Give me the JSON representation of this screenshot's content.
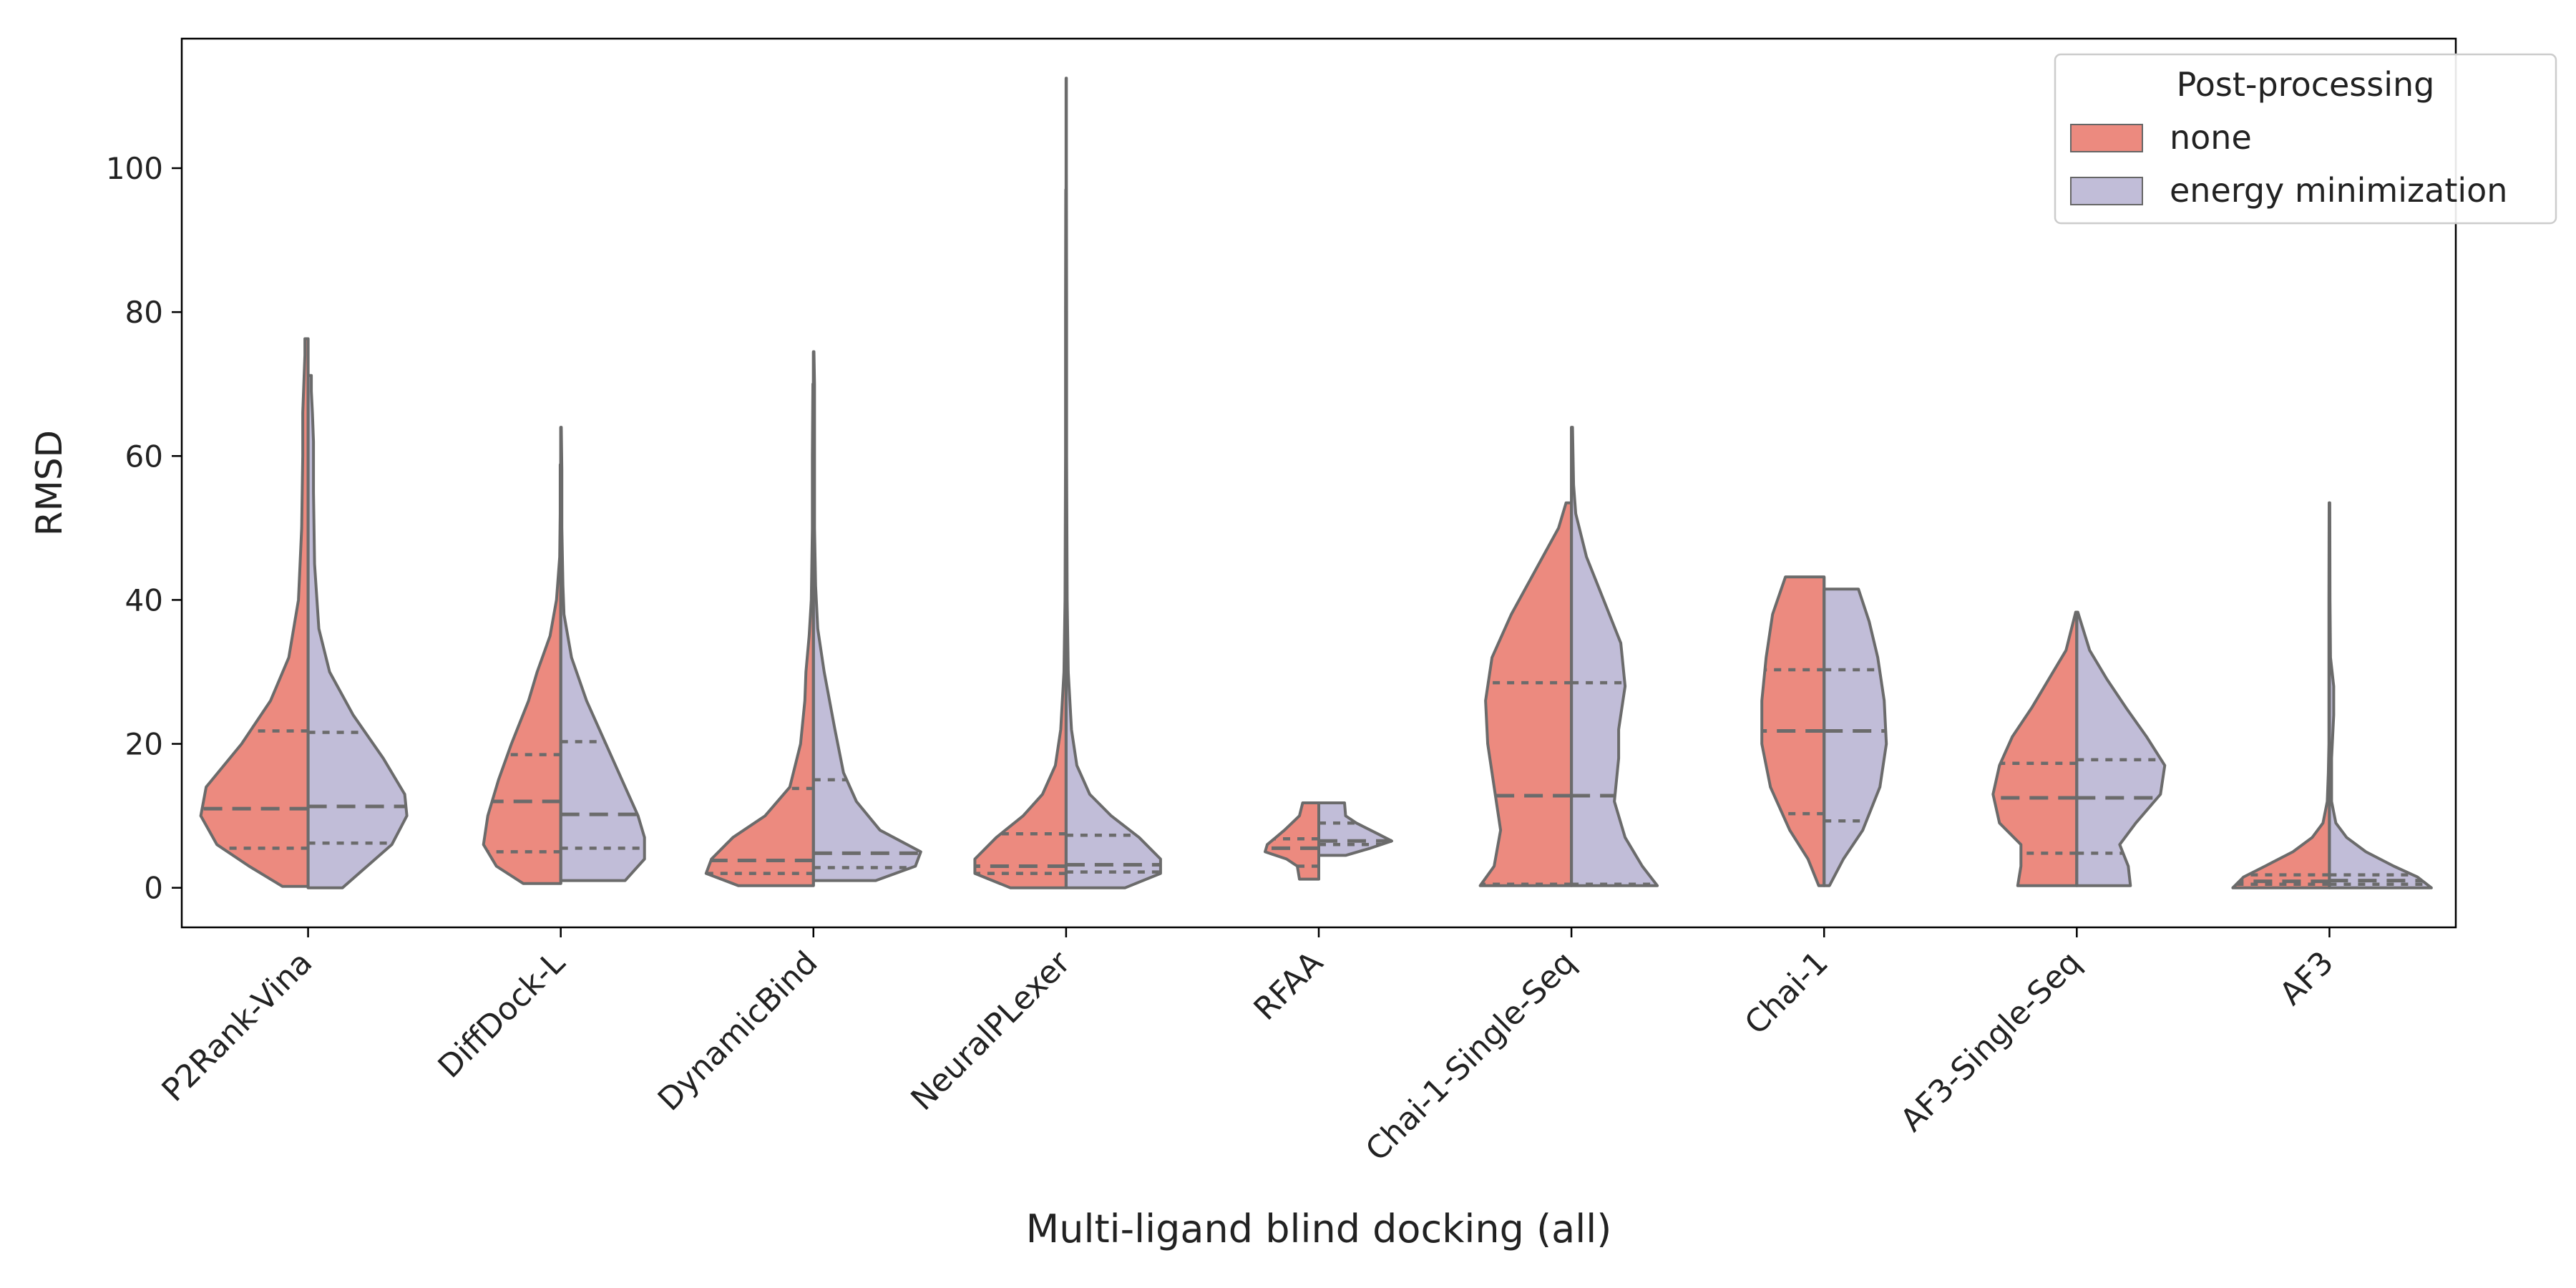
{
  "chart_data": {
    "type": "violin",
    "title": "",
    "xlabel": "Multi-ligand blind docking (all)",
    "ylabel": "RMSD",
    "ylim": [
      -5.5,
      118
    ],
    "yticks": [
      0,
      20,
      40,
      60,
      80,
      100
    ],
    "grid": false,
    "legend": {
      "title": "Post-processing",
      "position": "top-right"
    },
    "series": [
      {
        "name": "none",
        "color": "#ec8a7f"
      },
      {
        "name": "energy minimization",
        "color": "#c1bdd8"
      }
    ],
    "categories": [
      "P2Rank-Vina",
      "DiffDock-L",
      "DynamicBind",
      "NeuralPLexer",
      "RFAA",
      "Chai-1-Single-Seq",
      "Chai-1",
      "AF3-Single-Seq",
      "AF3"
    ],
    "groups": [
      {
        "name": "P2Rank-Vina",
        "none": {
          "quartiles": [
            5.5,
            11.0,
            21.8
          ],
          "min": 0.2,
          "max": 76.3,
          "density": [
            [
              0.2,
              0.24
            ],
            [
              3,
              0.55
            ],
            [
              6,
              0.85
            ],
            [
              10,
              1.0
            ],
            [
              14,
              0.95
            ],
            [
              20,
              0.62
            ],
            [
              26,
              0.35
            ],
            [
              32,
              0.18
            ],
            [
              40,
              0.09
            ],
            [
              50,
              0.06
            ],
            [
              60,
              0.05
            ],
            [
              66,
              0.05
            ],
            [
              70,
              0.04
            ],
            [
              74,
              0.03
            ],
            [
              76.3,
              0.03
            ]
          ]
        },
        "energy minimization": {
          "quartiles": [
            6.2,
            11.3,
            21.6
          ],
          "min": 0.0,
          "max": 71.2,
          "density": [
            [
              0,
              0.32
            ],
            [
              3,
              0.55
            ],
            [
              6,
              0.78
            ],
            [
              10,
              0.92
            ],
            [
              13,
              0.9
            ],
            [
              18,
              0.7
            ],
            [
              24,
              0.42
            ],
            [
              30,
              0.2
            ],
            [
              36,
              0.1
            ],
            [
              45,
              0.06
            ],
            [
              55,
              0.05
            ],
            [
              62,
              0.05
            ],
            [
              66,
              0.04
            ],
            [
              69,
              0.03
            ],
            [
              71.2,
              0.03
            ]
          ]
        }
      },
      {
        "name": "DiffDock-L",
        "none": {
          "quartiles": [
            5.0,
            12.0,
            18.5
          ],
          "min": 0.6,
          "max": 58.8,
          "density": [
            [
              0.6,
              0.35
            ],
            [
              3,
              0.6
            ],
            [
              6,
              0.72
            ],
            [
              10,
              0.68
            ],
            [
              15,
              0.58
            ],
            [
              20,
              0.46
            ],
            [
              26,
              0.3
            ],
            [
              30,
              0.22
            ],
            [
              35,
              0.1
            ],
            [
              40,
              0.04
            ],
            [
              46,
              0.01
            ],
            [
              52,
              0.005
            ],
            [
              58.8,
              0.005
            ]
          ]
        },
        "energy minimization": {
          "quartiles": [
            5.5,
            10.2,
            20.3
          ],
          "min": 1.0,
          "max": 64.0,
          "density": [
            [
              1,
              0.6
            ],
            [
              4,
              0.78
            ],
            [
              7,
              0.78
            ],
            [
              10,
              0.72
            ],
            [
              14,
              0.6
            ],
            [
              20,
              0.42
            ],
            [
              26,
              0.24
            ],
            [
              32,
              0.1
            ],
            [
              38,
              0.03
            ],
            [
              42,
              0.02
            ],
            [
              50,
              0.01
            ],
            [
              58,
              0.01
            ],
            [
              64,
              0.005
            ]
          ]
        }
      },
      {
        "name": "DynamicBind",
        "none": {
          "quartiles": [
            2.0,
            3.8,
            13.8
          ],
          "min": 0.3,
          "max": 70.0,
          "density": [
            [
              0.3,
              0.7
            ],
            [
              2,
              1.0
            ],
            [
              4,
              0.95
            ],
            [
              7,
              0.75
            ],
            [
              10,
              0.45
            ],
            [
              14,
              0.22
            ],
            [
              20,
              0.12
            ],
            [
              26,
              0.08
            ],
            [
              30,
              0.07
            ],
            [
              35,
              0.04
            ],
            [
              40,
              0.02
            ],
            [
              50,
              0.01
            ],
            [
              60,
              0.01
            ],
            [
              70,
              0.005
            ]
          ]
        },
        "energy minimization": {
          "quartiles": [
            2.8,
            4.8,
            15.0
          ],
          "min": 1.0,
          "max": 74.5,
          "density": [
            [
              1,
              0.58
            ],
            [
              3,
              0.95
            ],
            [
              5,
              1.0
            ],
            [
              8,
              0.62
            ],
            [
              12,
              0.4
            ],
            [
              16,
              0.28
            ],
            [
              22,
              0.2
            ],
            [
              30,
              0.1
            ],
            [
              36,
              0.04
            ],
            [
              42,
              0.02
            ],
            [
              50,
              0.01
            ],
            [
              60,
              0.01
            ],
            [
              70,
              0.01
            ],
            [
              74.5,
              0.005
            ]
          ]
        }
      },
      {
        "name": "NeuralPLexer",
        "none": {
          "quartiles": [
            2.0,
            3.0,
            7.5
          ],
          "min": 0.0,
          "max": 97.0,
          "density": [
            [
              0,
              0.52
            ],
            [
              2,
              0.85
            ],
            [
              4,
              0.85
            ],
            [
              7,
              0.65
            ],
            [
              10,
              0.4
            ],
            [
              13,
              0.22
            ],
            [
              17,
              0.1
            ],
            [
              22,
              0.05
            ],
            [
              30,
              0.02
            ],
            [
              40,
              0.01
            ],
            [
              60,
              0.005
            ],
            [
              80,
              0.005
            ],
            [
              97,
              0.003
            ]
          ]
        },
        "energy minimization": {
          "quartiles": [
            2.2,
            3.2,
            7.3
          ],
          "min": 0.0,
          "max": 112.5,
          "density": [
            [
              0,
              0.55
            ],
            [
              2,
              0.88
            ],
            [
              4,
              0.88
            ],
            [
              7,
              0.68
            ],
            [
              10,
              0.42
            ],
            [
              13,
              0.22
            ],
            [
              17,
              0.1
            ],
            [
              22,
              0.05
            ],
            [
              30,
              0.02
            ],
            [
              40,
              0.01
            ],
            [
              60,
              0.005
            ],
            [
              80,
              0.005
            ],
            [
              100,
              0.003
            ],
            [
              112.5,
              0.003
            ]
          ]
        }
      },
      {
        "name": "RFAA",
        "none": {
          "quartiles": [
            3.0,
            5.5,
            6.8
          ],
          "min": 1.2,
          "max": 11.8,
          "density": [
            [
              1.2,
              0.18
            ],
            [
              3,
              0.2
            ],
            [
              4,
              0.3
            ],
            [
              5,
              0.5
            ],
            [
              6,
              0.48
            ],
            [
              7,
              0.4
            ],
            [
              8,
              0.32
            ],
            [
              9,
              0.25
            ],
            [
              10,
              0.18
            ],
            [
              11.8,
              0.15
            ]
          ]
        },
        "energy minimization": {
          "quartiles": [
            6.0,
            6.5,
            9.0
          ],
          "min": 4.5,
          "max": 11.8,
          "density": [
            [
              4.5,
              0.25
            ],
            [
              5.5,
              0.48
            ],
            [
              6.5,
              0.68
            ],
            [
              7.5,
              0.55
            ],
            [
              9,
              0.35
            ],
            [
              10,
              0.25
            ],
            [
              11.8,
              0.24
            ]
          ]
        }
      },
      {
        "name": "Chai-1-Single-Seq",
        "none": {
          "quartiles": [
            0.5,
            12.8,
            28.5
          ],
          "min": 0.3,
          "max": 53.5,
          "density": [
            [
              0.3,
              0.85
            ],
            [
              3,
              0.72
            ],
            [
              8,
              0.66
            ],
            [
              14,
              0.72
            ],
            [
              20,
              0.78
            ],
            [
              26,
              0.8
            ],
            [
              32,
              0.74
            ],
            [
              38,
              0.56
            ],
            [
              44,
              0.34
            ],
            [
              50,
              0.12
            ],
            [
              53.5,
              0.05
            ]
          ]
        },
        "energy minimization": {
          "quartiles": [
            0.5,
            12.8,
            28.5
          ],
          "min": 0.3,
          "max": 64.0,
          "density": [
            [
              0.3,
              0.8
            ],
            [
              3,
              0.66
            ],
            [
              7,
              0.5
            ],
            [
              12,
              0.4
            ],
            [
              18,
              0.44
            ],
            [
              22,
              0.44
            ],
            [
              28,
              0.5
            ],
            [
              34,
              0.46
            ],
            [
              40,
              0.3
            ],
            [
              46,
              0.14
            ],
            [
              52,
              0.04
            ],
            [
              56,
              0.02
            ],
            [
              64,
              0.01
            ]
          ]
        }
      },
      {
        "name": "Chai-1",
        "none": {
          "quartiles": [
            10.3,
            21.8,
            30.3
          ],
          "min": 0.3,
          "max": 43.2,
          "density": [
            [
              0.3,
              0.05
            ],
            [
              4,
              0.15
            ],
            [
              8,
              0.32
            ],
            [
              14,
              0.5
            ],
            [
              20,
              0.58
            ],
            [
              26,
              0.58
            ],
            [
              32,
              0.54
            ],
            [
              38,
              0.48
            ],
            [
              43.2,
              0.36
            ]
          ]
        },
        "energy minimization": {
          "quartiles": [
            9.3,
            21.8,
            30.3
          ],
          "min": 0.3,
          "max": 41.5,
          "density": [
            [
              0.3,
              0.05
            ],
            [
              4,
              0.18
            ],
            [
              8,
              0.36
            ],
            [
              14,
              0.52
            ],
            [
              20,
              0.58
            ],
            [
              26,
              0.56
            ],
            [
              32,
              0.5
            ],
            [
              37,
              0.42
            ],
            [
              41.5,
              0.32
            ]
          ]
        }
      },
      {
        "name": "AF3-Single-Seq",
        "none": {
          "quartiles": [
            4.8,
            12.5,
            17.3
          ],
          "min": 0.3,
          "max": 38.3,
          "density": [
            [
              0.3,
              0.55
            ],
            [
              3,
              0.52
            ],
            [
              6,
              0.52
            ],
            [
              9,
              0.72
            ],
            [
              13,
              0.78
            ],
            [
              17,
              0.72
            ],
            [
              21,
              0.6
            ],
            [
              25,
              0.42
            ],
            [
              29,
              0.26
            ],
            [
              33,
              0.1
            ],
            [
              38.3,
              0.01
            ]
          ]
        },
        "energy minimization": {
          "quartiles": [
            4.8,
            12.5,
            17.8
          ],
          "min": 0.3,
          "max": 38.3,
          "density": [
            [
              0.3,
              0.5
            ],
            [
              3,
              0.48
            ],
            [
              6,
              0.4
            ],
            [
              9,
              0.55
            ],
            [
              13,
              0.78
            ],
            [
              17,
              0.82
            ],
            [
              21,
              0.65
            ],
            [
              25,
              0.46
            ],
            [
              29,
              0.28
            ],
            [
              33,
              0.12
            ],
            [
              38.3,
              0.01
            ]
          ]
        }
      },
      {
        "name": "AF3",
        "none": {
          "quartiles": [
            0.5,
            0.9,
            1.8
          ],
          "min": 0.0,
          "max": 53.5,
          "density": [
            [
              0,
              0.9
            ],
            [
              1.5,
              0.8
            ],
            [
              3,
              0.6
            ],
            [
              5,
              0.34
            ],
            [
              7,
              0.16
            ],
            [
              9,
              0.06
            ],
            [
              12,
              0.02
            ],
            [
              16,
              0.01
            ],
            [
              20,
              0.005
            ],
            [
              30,
              0.005
            ],
            [
              40,
              0.005
            ],
            [
              53.5,
              0.003
            ]
          ]
        },
        "energy minimization": {
          "quartiles": [
            0.5,
            1.0,
            1.8
          ],
          "min": 0.0,
          "max": 53.5,
          "density": [
            [
              0,
              0.95
            ],
            [
              1.5,
              0.82
            ],
            [
              3,
              0.6
            ],
            [
              5,
              0.34
            ],
            [
              7,
              0.16
            ],
            [
              9,
              0.06
            ],
            [
              12,
              0.02
            ],
            [
              18,
              0.02
            ],
            [
              24,
              0.04
            ],
            [
              28,
              0.04
            ],
            [
              32,
              0.01
            ],
            [
              40,
              0.005
            ],
            [
              53.5,
              0.003
            ]
          ]
        }
      }
    ]
  }
}
